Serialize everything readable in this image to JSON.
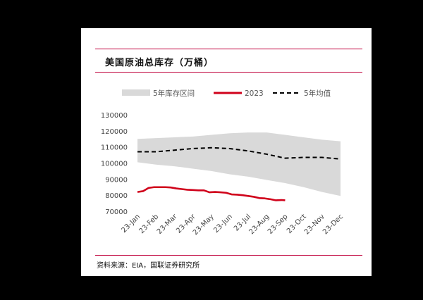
{
  "header": {
    "title": "美国原油总库存（万桶）"
  },
  "footer": {
    "source": "资料来源：EIA，国联证券研究所"
  },
  "colors": {
    "band": "#d9d9d9",
    "series_2023": "#d0021b",
    "avg": "#000000",
    "rule": "#c0003a"
  },
  "chart_data": {
    "type": "area",
    "title": "美国原油总库存（万桶）",
    "xlabel": "",
    "ylabel": "",
    "ylim": [
      70000,
      130000
    ],
    "yticks": [
      70000,
      80000,
      90000,
      100000,
      110000,
      120000,
      130000
    ],
    "categories": [
      "23-Jan",
      "23-Feb",
      "23-Mar",
      "23-Apr",
      "23-May",
      "23-Jun",
      "23-Jul",
      "23-Aug",
      "23-Sep",
      "23-Oct",
      "23-Nov",
      "23-Dec"
    ],
    "legend": {
      "placement": "top",
      "entries": [
        "5年库存区间",
        "2023",
        "5年均值"
      ]
    },
    "grid": false,
    "series": [
      {
        "name": "5年库存区间",
        "kind": "band",
        "upper": [
          115000,
          115500,
          116000,
          116500,
          117500,
          118500,
          119000,
          119000,
          117500,
          116000,
          114500,
          113500
        ],
        "lower": [
          100500,
          99000,
          98000,
          96500,
          95000,
          93000,
          91500,
          89500,
          87500,
          85000,
          82000,
          79500
        ]
      },
      {
        "name": "2023",
        "kind": "line",
        "x": [
          0,
          0.3,
          0.6,
          0.9,
          1.2,
          1.5,
          1.8,
          2.1,
          2.4,
          2.7,
          3.0,
          3.3,
          3.6,
          3.9,
          4.2,
          4.5,
          4.8,
          5.1,
          5.4,
          5.7,
          6.0,
          6.3,
          6.6,
          6.9,
          7.2,
          7.5,
          7.8,
          8.0
        ],
        "values": [
          82000,
          82500,
          84500,
          85000,
          85000,
          85000,
          84800,
          84200,
          83800,
          83400,
          83200,
          83000,
          83000,
          81800,
          82000,
          81800,
          81500,
          80500,
          80300,
          80000,
          79500,
          79000,
          78200,
          78000,
          77500,
          76800,
          77000,
          76800
        ]
      },
      {
        "name": "5年均值",
        "kind": "dashed",
        "values": [
          107000,
          107000,
          108000,
          109000,
          109500,
          109000,
          107500,
          105500,
          103000,
          103500,
          103500,
          102500
        ]
      }
    ]
  }
}
